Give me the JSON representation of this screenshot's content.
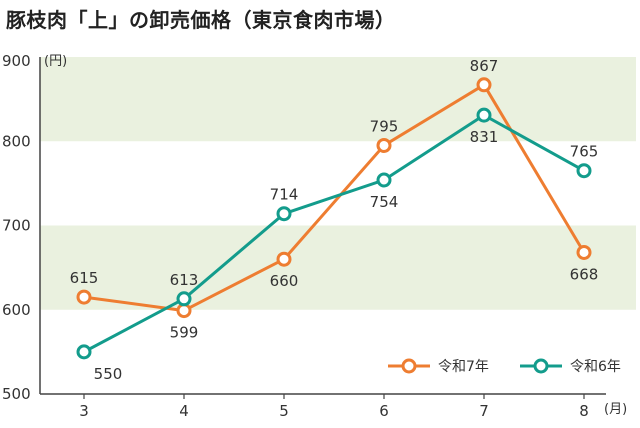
{
  "chart_data": {
    "type": "line",
    "title": "豚枝肉「上」の卸売価格（東京食肉市場）",
    "ylabel": "(円)",
    "xlabel": "(月)",
    "categories": [
      "3",
      "4",
      "5",
      "6",
      "7",
      "8"
    ],
    "ylim": [
      500,
      900
    ],
    "yticks": [
      "500",
      "600",
      "700",
      "800",
      "900"
    ],
    "grid": "alternating horizontal bands",
    "legend_position": "bottom-right",
    "series": [
      {
        "name": "令和7年",
        "color": "#ee7d31",
        "values": [
          615,
          599,
          660,
          795,
          867,
          668
        ]
      },
      {
        "name": "令和6年",
        "color": "#139c8c",
        "values": [
          550,
          613,
          714,
          754,
          831,
          765
        ]
      }
    ],
    "band_color": "#eaf1df"
  }
}
